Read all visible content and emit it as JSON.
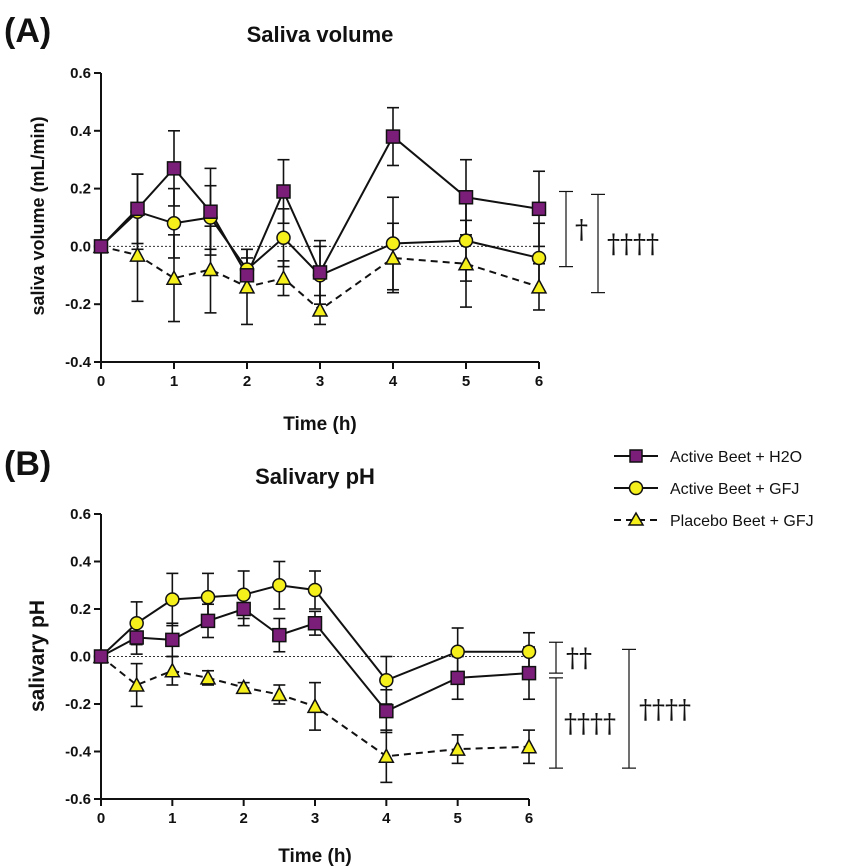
{
  "legend": [
    {
      "label": "Active Beet + H2O",
      "marker": "square",
      "color": "#7b1e7a",
      "dash": "solid"
    },
    {
      "label": "Active Beet + GFJ",
      "marker": "circle",
      "color": "#f5ef1c",
      "dash": "solid"
    },
    {
      "label": "Placebo Beet + GFJ",
      "marker": "triangle",
      "color": "#f5ef1c",
      "dash": "dashed"
    }
  ],
  "chart_data": [
    {
      "panel_label": "(A)",
      "type": "line",
      "title": "Saliva volume",
      "xlabel": "Time (h)",
      "ylabel": "saliva volume (mL/min)",
      "xlim": [
        0,
        6
      ],
      "ylim": [
        -0.4,
        0.6
      ],
      "x_ticks": [
        "0",
        "1",
        "2",
        "3",
        "4",
        "5",
        "6"
      ],
      "y_ticks": [
        "-0.4",
        "-0.2",
        "0.0",
        "0.2",
        "0.4",
        "0.6"
      ],
      "reference_line": 0,
      "x": [
        0,
        0.5,
        1,
        1.5,
        2,
        2.5,
        3,
        4,
        5,
        6
      ],
      "series": [
        {
          "name": "Active Beet + H2O",
          "values": [
            0.0,
            0.13,
            0.27,
            0.12,
            -0.1,
            0.19,
            -0.09,
            0.38,
            0.17,
            0.13
          ],
          "errors": [
            0,
            0.12,
            0.13,
            0.15,
            0.06,
            0.11,
            0.11,
            0.1,
            0.13,
            0.13
          ]
        },
        {
          "name": "Active Beet + GFJ",
          "values": [
            0.0,
            0.12,
            0.08,
            0.1,
            -0.08,
            0.03,
            -0.1,
            0.01,
            0.02,
            -0.04
          ],
          "errors": [
            0,
            0.13,
            0.12,
            0.11,
            0.07,
            0.1,
            0.1,
            0.16,
            0.14,
            0.12
          ]
        },
        {
          "name": "Placebo Beet + GFJ",
          "values": [
            0.0,
            -0.03,
            -0.11,
            -0.08,
            -0.14,
            -0.11,
            -0.22,
            -0.04,
            -0.06,
            -0.14
          ],
          "errors": [
            0,
            0.16,
            0.15,
            0.15,
            0.13,
            0.06,
            0.05,
            0.12,
            0.15,
            0.08
          ]
        }
      ],
      "significance": [
        "†",
        "††††"
      ]
    },
    {
      "panel_label": "(B)",
      "type": "line",
      "title": "Salivary pH",
      "xlabel": "Time (h)",
      "ylabel": "salivary pH",
      "xlim": [
        0,
        6
      ],
      "ylim": [
        -0.6,
        0.6
      ],
      "x_ticks": [
        "0",
        "1",
        "2",
        "3",
        "4",
        "5",
        "6"
      ],
      "y_ticks": [
        "-0.6",
        "-0.4",
        "-0.2",
        "0.0",
        "0.2",
        "0.4",
        "0.6"
      ],
      "reference_line": 0,
      "x": [
        0,
        0.5,
        1,
        1.5,
        2,
        2.5,
        3,
        4,
        5,
        6
      ],
      "series": [
        {
          "name": "Active Beet + H2O",
          "values": [
            0.0,
            0.08,
            0.07,
            0.15,
            0.2,
            0.09,
            0.14,
            -0.23,
            -0.09,
            -0.07
          ],
          "errors": [
            0,
            0.07,
            0.07,
            0.07,
            0.07,
            0.07,
            0.05,
            0.09,
            0.09,
            0.11
          ]
        },
        {
          "name": "Active Beet + GFJ",
          "values": [
            0.0,
            0.14,
            0.24,
            0.25,
            0.26,
            0.3,
            0.28,
            -0.1,
            0.02,
            0.02
          ],
          "errors": [
            0,
            0.09,
            0.11,
            0.1,
            0.1,
            0.1,
            0.08,
            0.1,
            0.1,
            0.08
          ]
        },
        {
          "name": "Placebo Beet + GFJ",
          "values": [
            0.0,
            -0.12,
            -0.06,
            -0.09,
            -0.13,
            -0.16,
            -0.21,
            -0.42,
            -0.39,
            -0.38
          ],
          "errors": [
            0,
            0.09,
            0.06,
            0.03,
            0.02,
            0.04,
            0.1,
            0.11,
            0.06,
            0.07
          ]
        }
      ],
      "significance": [
        "††",
        "††††",
        "††††"
      ]
    }
  ]
}
